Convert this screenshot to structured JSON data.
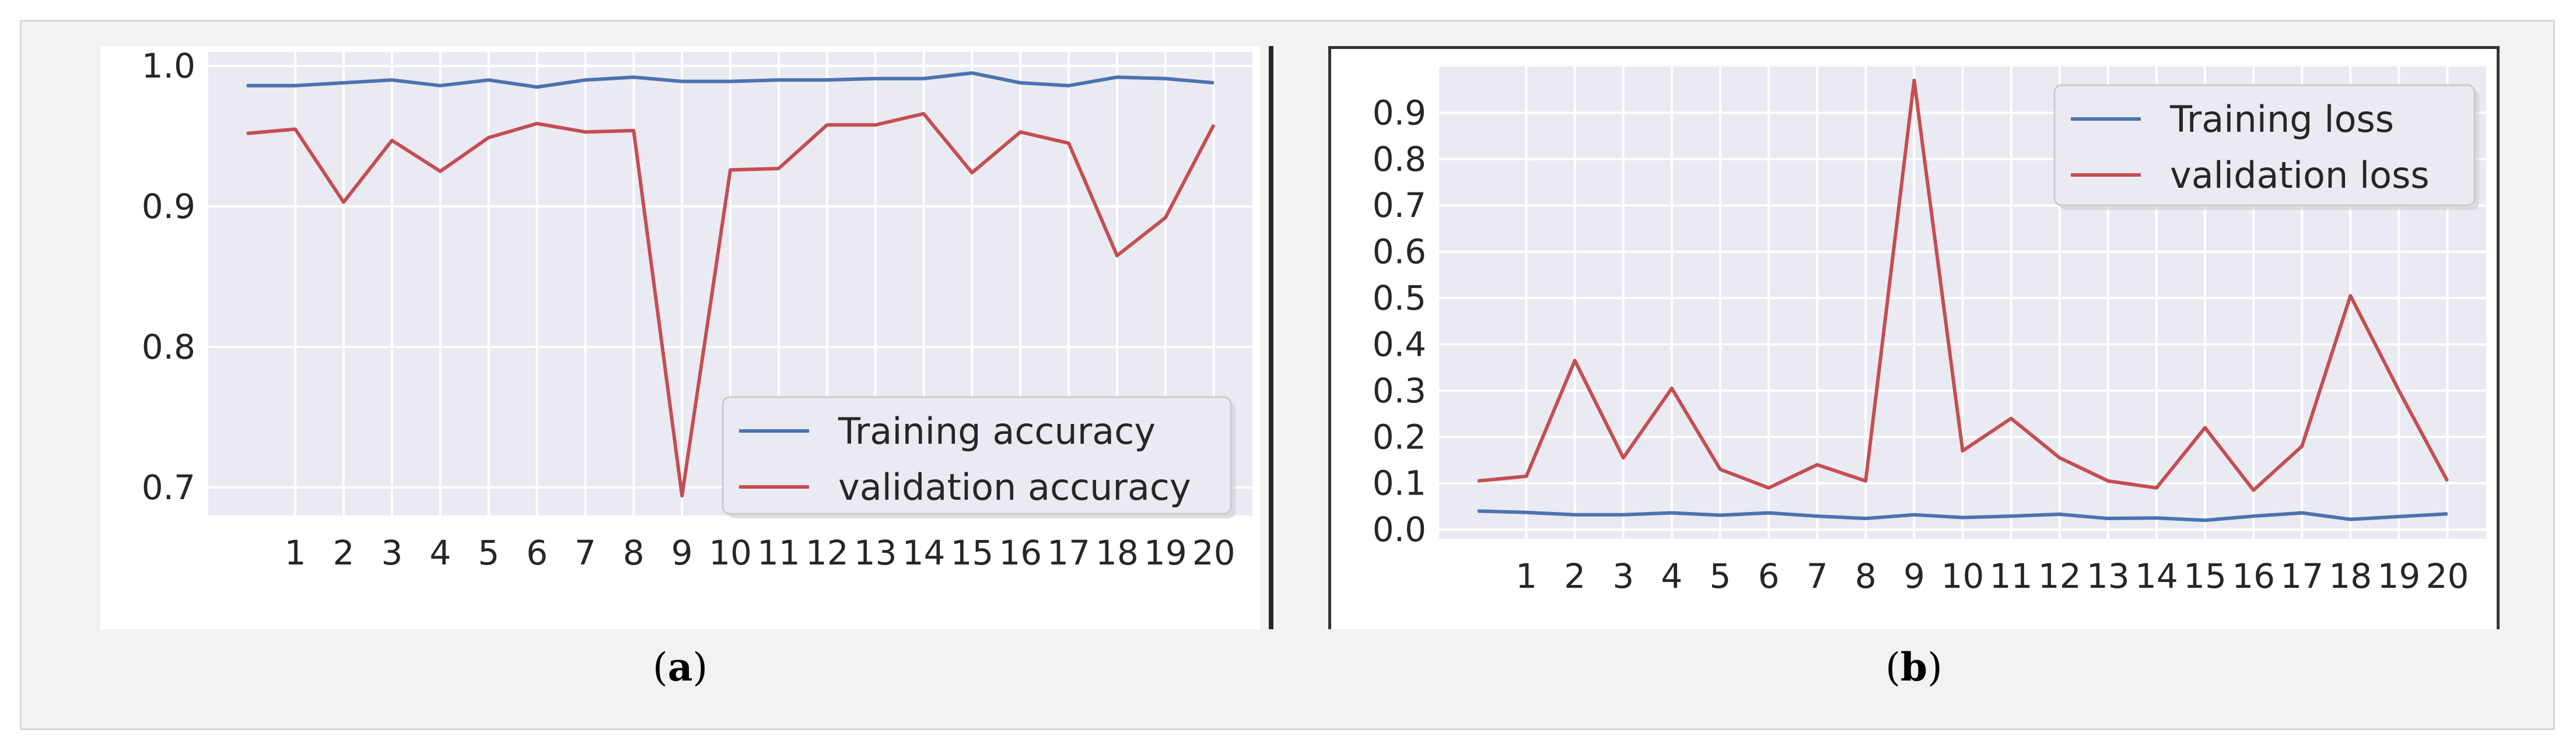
{
  "captions": {
    "a_open": "(",
    "a_letter": "a",
    "a_close": ")",
    "b_open": "(",
    "b_letter": "b",
    "b_close": ")"
  },
  "chart_data": [
    {
      "type": "line",
      "title": "",
      "xlabel": "",
      "ylabel": "",
      "categories": [
        "1",
        "2",
        "3",
        "4",
        "5",
        "6",
        "7",
        "8",
        "9",
        "10",
        "11",
        "12",
        "13",
        "14",
        "15",
        "16",
        "17",
        "18",
        "19",
        "20"
      ],
      "x": [
        0,
        1,
        2,
        3,
        4,
        5,
        6,
        7,
        8,
        9,
        10,
        11,
        12,
        13,
        14,
        15,
        16,
        17,
        18,
        19,
        20
      ],
      "ylim": [
        0.68,
        1.01
      ],
      "yticks": [
        0.7,
        0.8,
        0.9,
        1.0
      ],
      "ytick_labels": [
        "0.7",
        "0.8",
        "0.9",
        "1.0"
      ],
      "grid": true,
      "legend": "lower-right",
      "series": [
        {
          "name": "Training accuracy",
          "color": "#4c72b0",
          "values": [
            0.986,
            0.986,
            0.988,
            0.99,
            0.986,
            0.99,
            0.985,
            0.99,
            0.992,
            0.989,
            0.989,
            0.99,
            0.99,
            0.991,
            0.991,
            0.995,
            0.988,
            0.986,
            0.992,
            0.991,
            0.988
          ]
        },
        {
          "name": "validation accuracy",
          "color": "#c44e52",
          "values": [
            0.952,
            0.955,
            0.903,
            0.947,
            0.925,
            0.949,
            0.959,
            0.953,
            0.954,
            0.694,
            0.926,
            0.927,
            0.958,
            0.958,
            0.966,
            0.924,
            0.953,
            0.945,
            0.865,
            0.892,
            0.958
          ]
        }
      ]
    },
    {
      "type": "line",
      "title": "",
      "xlabel": "",
      "ylabel": "",
      "categories": [
        "1",
        "2",
        "3",
        "4",
        "5",
        "6",
        "7",
        "8",
        "9",
        "10",
        "11",
        "12",
        "13",
        "14",
        "15",
        "16",
        "17",
        "18",
        "19",
        "20"
      ],
      "x": [
        0,
        1,
        2,
        3,
        4,
        5,
        6,
        7,
        8,
        9,
        10,
        11,
        12,
        13,
        14,
        15,
        16,
        17,
        18,
        19,
        20
      ],
      "ylim": [
        -0.02,
        1.0
      ],
      "yticks": [
        0.0,
        0.1,
        0.2,
        0.3,
        0.4,
        0.5,
        0.6,
        0.7,
        0.8,
        0.9
      ],
      "ytick_labels": [
        "0.0",
        "0.1",
        "0.2",
        "0.3",
        "0.4",
        "0.5",
        "0.6",
        "0.7",
        "0.8",
        "0.9"
      ],
      "grid": true,
      "legend": "top-right",
      "series": [
        {
          "name": "Training loss",
          "color": "#4c72b0",
          "values": [
            0.04,
            0.037,
            0.032,
            0.032,
            0.036,
            0.031,
            0.036,
            0.029,
            0.024,
            0.032,
            0.026,
            0.029,
            0.033,
            0.024,
            0.025,
            0.02,
            0.029,
            0.036,
            0.022,
            0.028,
            0.034
          ]
        },
        {
          "name": "validation loss",
          "color": "#c44e52",
          "values": [
            0.105,
            0.115,
            0.365,
            0.155,
            0.305,
            0.13,
            0.09,
            0.14,
            0.105,
            0.97,
            0.17,
            0.24,
            0.155,
            0.105,
            0.09,
            0.22,
            0.085,
            0.18,
            0.505,
            0.3,
            0.105
          ]
        }
      ]
    }
  ]
}
